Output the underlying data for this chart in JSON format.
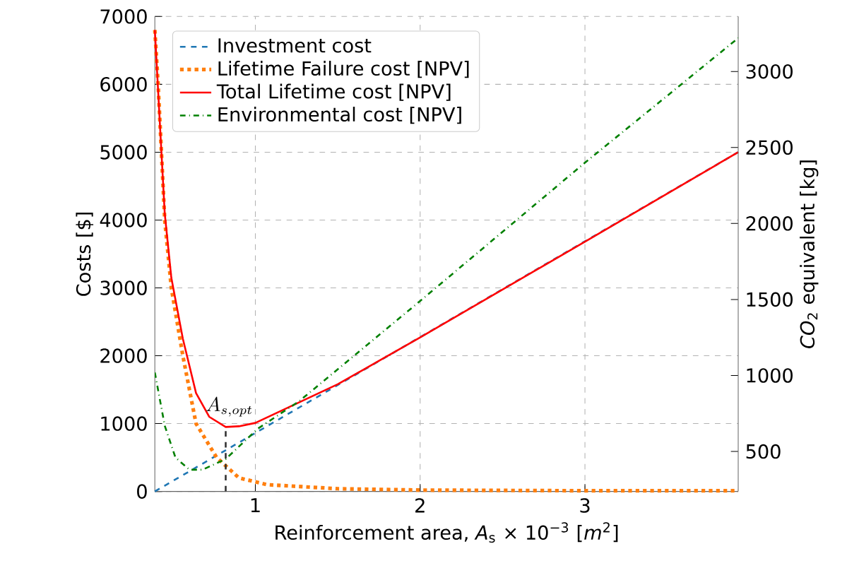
{
  "chart_data": {
    "type": "line",
    "xlabel": "Reinforcement area, *A*$_{s}$ × 10$^{−3}$ [*m*$^{2}$]",
    "ylabel": "Costs [$]",
    "y2label": "*CO*$_{2}$ equivalent  [kg]",
    "xlim": [
      0.39,
      3.93
    ],
    "xticks": [
      1,
      2,
      3
    ],
    "ylim": [
      0,
      7000
    ],
    "yticks": [
      0,
      1000,
      2000,
      3000,
      4000,
      5000,
      6000,
      7000
    ],
    "y2lim": [
      237,
      3362
    ],
    "y2ticks": [
      500,
      1000,
      1500,
      2000,
      2500,
      3000
    ],
    "grid": true,
    "legend": "top left",
    "annotations": [
      {
        "text": "A_{s, opt}",
        "x": 0.82,
        "y": 950
      }
    ],
    "series": [
      {
        "name": "Investment cost",
        "color": "#1f77b4",
        "line_style": "dashed",
        "x": [
          0.39,
          3.93
        ],
        "values": [
          0,
          5000
        ]
      },
      {
        "name": "Lifetime Failure cost [NPV]",
        "color": "#ff7f0e",
        "line_style": "dotted",
        "x": [
          0.39,
          0.41,
          0.45,
          0.49,
          0.56,
          0.64,
          0.765,
          0.9,
          1.07,
          1.5,
          2.0,
          3.0,
          3.93
        ],
        "values": [
          6800,
          6000,
          4000,
          3000,
          2000,
          1000,
          500,
          200,
          100,
          40,
          20,
          10,
          10
        ]
      },
      {
        "name": "Total Lifetime cost [NPV]",
        "color": "#ff0000",
        "line_style": "solid",
        "x": [
          0.39,
          0.45,
          0.49,
          0.56,
          0.64,
          0.72,
          0.82,
          0.9,
          1.0,
          1.5,
          2.0,
          3.0,
          3.93
        ],
        "values": [
          6800,
          4100,
          3150,
          2250,
          1450,
          1100,
          950,
          960,
          1010,
          1580,
          2270,
          3680,
          5000
        ]
      },
      {
        "name": "Environmental cost [NPV]",
        "color": "#008000",
        "line_style": "dashdot",
        "axis": "y2",
        "x": [
          0.39,
          0.45,
          0.515,
          0.6,
          0.68,
          0.82,
          1.015,
          1.265,
          2.0,
          3.0,
          3.93
        ],
        "values": [
          1020,
          670,
          460,
          380,
          380,
          450,
          650,
          830,
          1490,
          2400,
          3220
        ]
      }
    ]
  }
}
